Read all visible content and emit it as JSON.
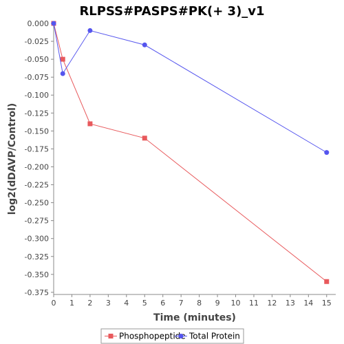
{
  "chart_data": {
    "type": "line",
    "title": "RLPSS#PASPS#PK(+ 3)_v1",
    "xlabel": "Time (minutes)",
    "ylabel": "log2(dDAVP/Control)",
    "xlim": [
      0,
      15.5
    ],
    "ylim": [
      -0.378,
      0.0
    ],
    "x_ticks": [
      0,
      1,
      2,
      3,
      4,
      5,
      6,
      7,
      8,
      9,
      10,
      11,
      12,
      13,
      14,
      15
    ],
    "y_ticks": [
      0.0,
      -0.025,
      -0.05,
      -0.075,
      -0.1,
      -0.125,
      -0.15,
      -0.175,
      -0.2,
      -0.225,
      -0.25,
      -0.275,
      -0.3,
      -0.325,
      -0.35,
      -0.375
    ],
    "y_tick_labels": [
      "0.000",
      "-0.025",
      "-0.050",
      "-0.075",
      "-0.100",
      "-0.125",
      "-0.150",
      "-0.175",
      "-0.200",
      "-0.225",
      "-0.250",
      "-0.275",
      "-0.300",
      "-0.325",
      "-0.350",
      "-0.375"
    ],
    "grid": false,
    "legend_position": "bottom",
    "series": [
      {
        "name": "Phosphopeptide",
        "color": "#e8595c",
        "marker": "square",
        "x": [
          0,
          0.5,
          2,
          5,
          15
        ],
        "y": [
          0.0,
          -0.05,
          -0.14,
          -0.16,
          -0.36
        ]
      },
      {
        "name": "Total Protein",
        "color": "#5555ee",
        "marker": "circle",
        "x": [
          0,
          0.5,
          2,
          5,
          15
        ],
        "y": [
          0.0,
          -0.07,
          -0.01,
          -0.03,
          -0.18
        ]
      }
    ]
  }
}
